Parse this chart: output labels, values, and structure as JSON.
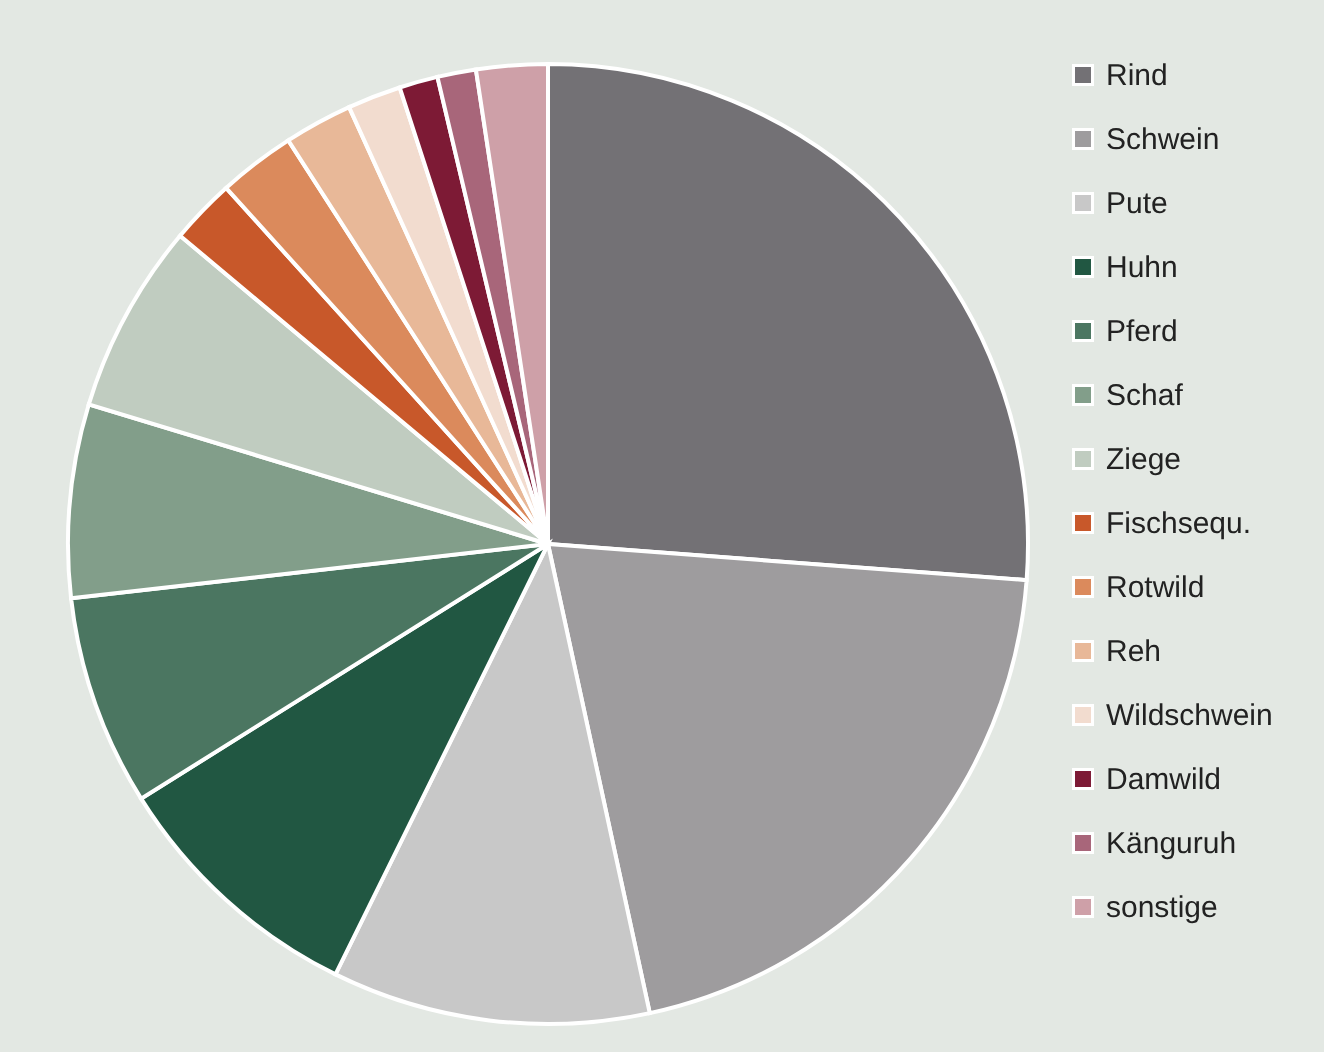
{
  "chart_data": {
    "type": "pie",
    "categories": [
      "Rind",
      "Schwein",
      "Pute",
      "Huhn",
      "Pferd",
      "Schaf",
      "Ziege",
      "Fischsequ.",
      "Rotwild",
      "Reh",
      "Wildschwein",
      "Damwild",
      "Känguruh",
      "sonstige"
    ],
    "values": [
      26.2,
      20.4,
      10.7,
      8.8,
      7.1,
      6.5,
      6.4,
      2.2,
      2.6,
      2.3,
      1.8,
      1.3,
      1.3,
      2.4
    ],
    "colors": [
      "#737175",
      "#9e9c9e",
      "#c8c8c8",
      "#215742",
      "#4b7661",
      "#829e8a",
      "#c0ccc0",
      "#c8582a",
      "#db8a5c",
      "#e8b898",
      "#f2dccf",
      "#7d1a35",
      "#a8667a",
      "#cea0a8"
    ],
    "legend": "right"
  }
}
